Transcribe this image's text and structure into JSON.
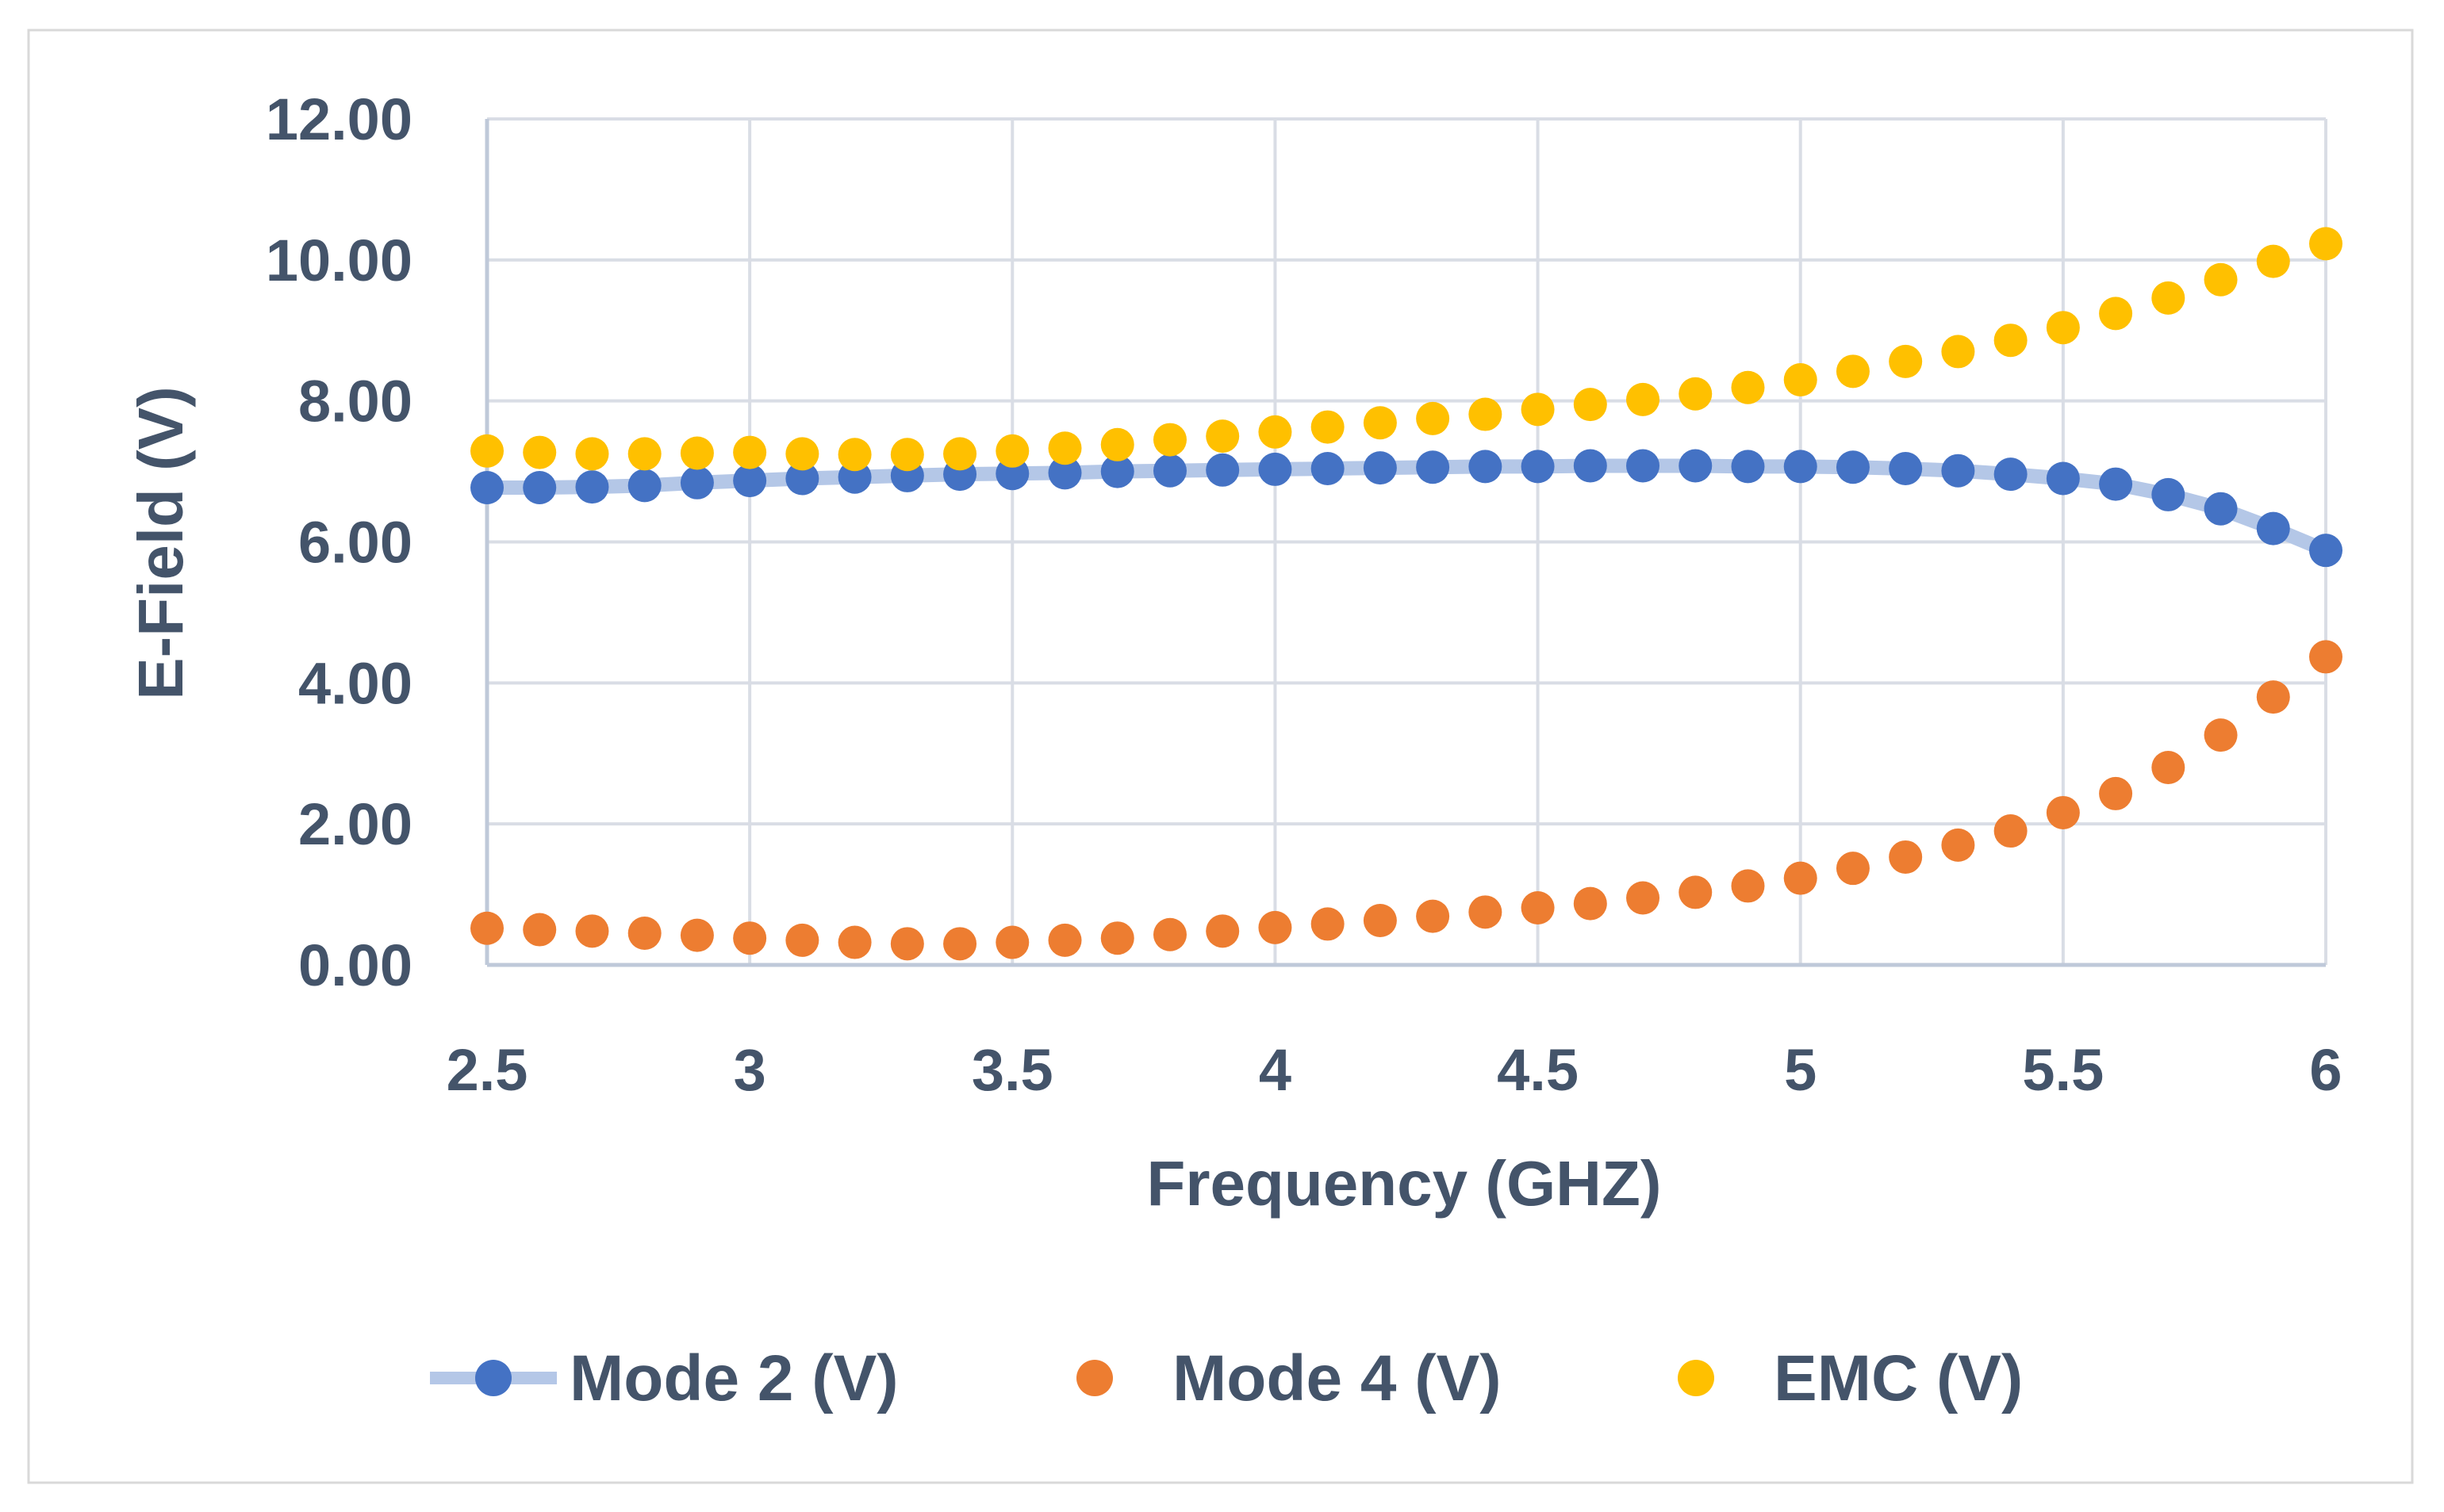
{
  "chart_data": {
    "type": "scatter",
    "title": "",
    "xlabel": "Frequency (GHZ)",
    "ylabel": "E-Field (V)",
    "xlim": [
      2.5,
      6
    ],
    "ylim": [
      0,
      12
    ],
    "xticks": [
      2.5,
      3,
      3.5,
      4,
      4.5,
      5,
      5.5,
      6
    ],
    "xtick_labels": [
      "2.5",
      "3",
      "3.5",
      "4",
      "4.5",
      "5",
      "5.5",
      "6"
    ],
    "yticks": [
      0,
      2,
      4,
      6,
      8,
      10,
      12
    ],
    "ytick_labels": [
      "0.00",
      "2.00",
      "4.00",
      "6.00",
      "8.00",
      "10.00",
      "12.00"
    ],
    "grid": true,
    "legend_position": "bottom",
    "x": [
      2.5,
      2.6,
      2.7,
      2.8,
      2.9,
      3.0,
      3.1,
      3.2,
      3.3,
      3.4,
      3.5,
      3.6,
      3.7,
      3.8,
      3.9,
      4.0,
      4.1,
      4.2,
      4.3,
      4.4,
      4.5,
      4.6,
      4.7,
      4.8,
      4.9,
      5.0,
      5.1,
      5.2,
      5.3,
      5.4,
      5.5,
      5.6,
      5.7,
      5.8,
      5.9,
      6.0
    ],
    "series": [
      {
        "name": "Mode 2 (V)",
        "color": "#4472c4",
        "line_color": "#b4c7e7",
        "values": [
          6.77,
          6.77,
          6.78,
          6.8,
          6.84,
          6.87,
          6.9,
          6.92,
          6.94,
          6.96,
          6.97,
          6.98,
          7.0,
          7.01,
          7.02,
          7.03,
          7.04,
          7.05,
          7.06,
          7.07,
          7.07,
          7.08,
          7.08,
          7.08,
          7.07,
          7.07,
          7.06,
          7.04,
          7.01,
          6.96,
          6.9,
          6.82,
          6.67,
          6.47,
          6.19,
          5.88
        ]
      },
      {
        "name": "Mode 4 (V)",
        "color": "#ed7d31",
        "values": [
          0.52,
          0.5,
          0.48,
          0.45,
          0.42,
          0.38,
          0.35,
          0.32,
          0.3,
          0.3,
          0.32,
          0.35,
          0.38,
          0.43,
          0.48,
          0.53,
          0.58,
          0.63,
          0.69,
          0.75,
          0.81,
          0.87,
          0.95,
          1.03,
          1.12,
          1.23,
          1.37,
          1.53,
          1.7,
          1.9,
          2.16,
          2.43,
          2.8,
          3.26,
          3.8,
          4.37
        ]
      },
      {
        "name": "EMC (V)",
        "color": "#ffc000",
        "values": [
          7.29,
          7.27,
          7.25,
          7.25,
          7.26,
          7.27,
          7.25,
          7.24,
          7.24,
          7.25,
          7.29,
          7.33,
          7.38,
          7.45,
          7.5,
          7.56,
          7.63,
          7.69,
          7.75,
          7.81,
          7.88,
          7.95,
          8.02,
          8.1,
          8.19,
          8.3,
          8.42,
          8.56,
          8.7,
          8.86,
          9.04,
          9.24,
          9.46,
          9.72,
          9.98,
          10.23
        ]
      }
    ]
  }
}
